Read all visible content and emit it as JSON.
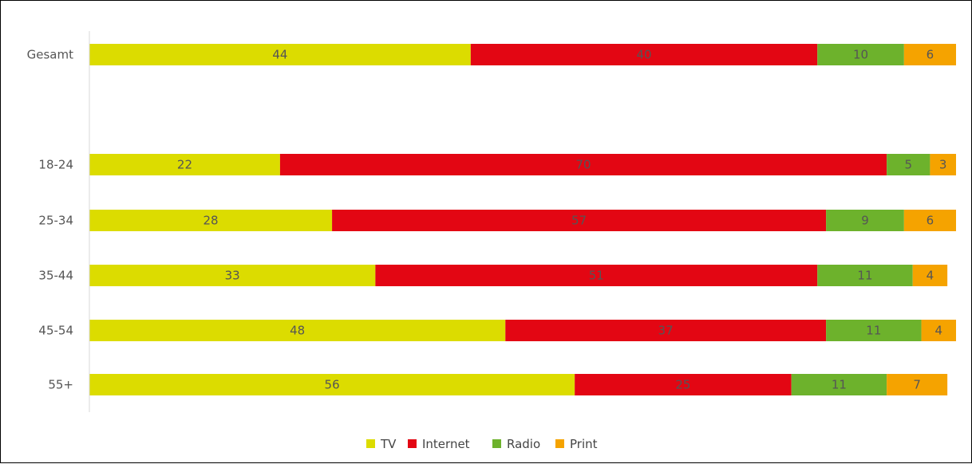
{
  "chart_data": {
    "type": "bar",
    "orientation": "horizontal",
    "stacked": true,
    "categories": [
      "Gesamt",
      "18-24",
      "25-34",
      "35-44",
      "45-54",
      "55+"
    ],
    "series": [
      {
        "name": "TV",
        "values": [
          44,
          22,
          28,
          33,
          48,
          56
        ],
        "color": "#dcdc00"
      },
      {
        "name": "Internet",
        "values": [
          40,
          70,
          57,
          51,
          37,
          25
        ],
        "color": "#e30613"
      },
      {
        "name": "Radio",
        "values": [
          10,
          5,
          9,
          11,
          11,
          11
        ],
        "color": "#6db22c"
      },
      {
        "name": "Print",
        "values": [
          6,
          3,
          6,
          4,
          4,
          7
        ],
        "color": "#f5a300"
      }
    ],
    "xlim": [
      0,
      100
    ],
    "grid": false,
    "legend_position": "bottom-center",
    "title": "",
    "xlabel": "",
    "ylabel": ""
  }
}
